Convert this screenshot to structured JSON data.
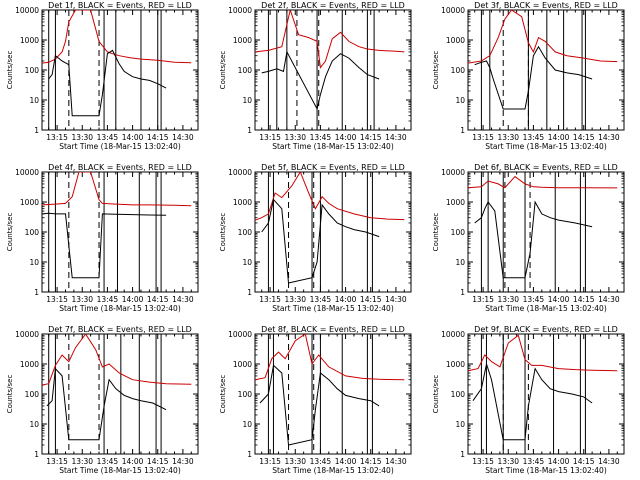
{
  "figure": {
    "colors": {
      "events": "#000000",
      "lld": "#cc0000",
      "axes": "#000000"
    }
  },
  "chart_data": [
    {
      "type": "line",
      "title": "Det 1f, BLACK = Events, RED = LLD",
      "xlabel": "Start Time (18-Mar-15 13:02:40)",
      "ylabel": "Counts/sec",
      "yscale": "log",
      "ylim": [
        1,
        10000
      ],
      "xlim": [
        "13:06",
        "14:39"
      ],
      "xticks": [
        "13:15",
        "13:30",
        "13:45",
        "14:00",
        "14:15",
        "14:30"
      ],
      "yticks": [
        "1",
        "10",
        "100",
        "1000",
        "10000"
      ],
      "solid_vlines": [
        "13:10",
        "13:14",
        "13:43",
        "13:50",
        "14:05",
        "14:15",
        "14:17"
      ],
      "dashed_vlines": [
        "13:22",
        "13:40"
      ],
      "series": [
        {
          "name": "Events",
          "color": "#000000",
          "x": [
            "13:10",
            "13:12",
            "13:14",
            "13:18",
            "13:22",
            "13:24",
            "13:40",
            "13:42",
            "13:45",
            "13:48",
            "13:52",
            "13:55",
            "14:00",
            "14:05",
            "14:10",
            "14:15",
            "14:20"
          ],
          "y": [
            50,
            70,
            300,
            200,
            150,
            3,
            3,
            15,
            350,
            450,
            160,
            90,
            60,
            50,
            45,
            35,
            25
          ]
        },
        {
          "name": "LLD",
          "color": "#cc0000",
          "x": [
            "13:06",
            "13:10",
            "13:14",
            "13:18",
            "13:20",
            "13:22",
            "13:26",
            "13:30",
            "13:35",
            "13:40",
            "13:45",
            "13:48",
            "13:52",
            "13:58",
            "14:05",
            "14:15",
            "14:25",
            "14:35"
          ],
          "y": [
            170,
            180,
            230,
            400,
            900,
            4000,
            10000,
            10000,
            10000,
            900,
            400,
            350,
            300,
            260,
            230,
            210,
            180,
            175
          ]
        }
      ]
    },
    {
      "type": "line",
      "title": "Det 2f, BLACK = Events, RED = LLD",
      "xlabel": "Start Time (18-Mar-15 13:02:40)",
      "ylabel": "Counts/sec",
      "yscale": "log",
      "ylim": [
        1,
        10000
      ],
      "xlim": [
        "13:06",
        "14:39"
      ],
      "xticks": [
        "13:15",
        "13:30",
        "13:45",
        "14:00",
        "14:15",
        "14:30"
      ],
      "yticks": [
        "1",
        "10",
        "100",
        "1000",
        "10000"
      ],
      "solid_vlines": [
        "13:14",
        "13:19",
        "13:25",
        "13:43",
        "13:58",
        "14:13",
        "14:17"
      ],
      "dashed_vlines": [
        "13:31",
        "13:44"
      ],
      "series": [
        {
          "name": "Events",
          "color": "#000000",
          "x": [
            "13:10",
            "13:14",
            "13:19",
            "13:23",
            "13:25",
            "13:43",
            "13:45",
            "13:48",
            "13:52",
            "13:57",
            "14:02",
            "14:08",
            "14:13",
            "14:20"
          ],
          "y": [
            80,
            90,
            110,
            90,
            400,
            5,
            15,
            60,
            200,
            350,
            250,
            120,
            70,
            50
          ]
        },
        {
          "name": "LLD",
          "color": "#cc0000",
          "x": [
            "13:06",
            "13:14",
            "13:22",
            "13:27",
            "13:32",
            "13:38",
            "13:43",
            "13:45",
            "13:48",
            "13:52",
            "13:57",
            "14:02",
            "14:08",
            "14:13",
            "14:20",
            "14:30",
            "14:35"
          ],
          "y": [
            400,
            450,
            600,
            10000,
            1500,
            1200,
            900,
            120,
            200,
            1100,
            1800,
            900,
            600,
            500,
            450,
            420,
            400
          ]
        }
      ]
    },
    {
      "type": "line",
      "title": "Det 3f, BLACK = Events, RED = LLD",
      "xlabel": "Start Time (18-Mar-15 13:02:40)",
      "ylabel": "Counts/sec",
      "yscale": "log",
      "ylim": [
        1,
        10000
      ],
      "xlim": [
        "13:06",
        "14:39"
      ],
      "xticks": [
        "13:15",
        "13:30",
        "13:45",
        "14:00",
        "14:15",
        "14:30"
      ],
      "yticks": [
        "1",
        "10",
        "100",
        "1000",
        "10000"
      ],
      "solid_vlines": [
        "13:14",
        "13:19",
        "13:42",
        "13:53",
        "14:03",
        "14:14",
        "14:16"
      ],
      "dashed_vlines": [
        "13:27",
        "13:42"
      ],
      "series": [
        {
          "name": "Events",
          "color": "#000000",
          "x": [
            "13:10",
            "13:14",
            "13:17",
            "13:19",
            "13:21",
            "13:27",
            "13:40",
            "13:42",
            "13:45",
            "13:48",
            "13:52",
            "13:58",
            "14:05",
            "14:12",
            "14:20"
          ],
          "y": [
            150,
            180,
            200,
            120,
            50,
            5,
            5,
            20,
            300,
            600,
            250,
            100,
            80,
            70,
            50
          ]
        },
        {
          "name": "LLD",
          "color": "#cc0000",
          "x": [
            "13:06",
            "13:14",
            "13:19",
            "13:24",
            "13:28",
            "13:32",
            "13:38",
            "13:42",
            "13:45",
            "13:48",
            "13:52",
            "13:58",
            "14:05",
            "14:15",
            "14:25",
            "14:35"
          ],
          "y": [
            170,
            200,
            300,
            1200,
            5000,
            10000,
            6000,
            800,
            400,
            1200,
            900,
            400,
            300,
            250,
            200,
            190
          ]
        }
      ]
    },
    {
      "type": "line",
      "title": "Det 4f, BLACK = Events, RED = LLD",
      "xlabel": "Start Time (18-Mar-15 13:02:40)",
      "ylabel": "Counts/sec",
      "yscale": "log",
      "ylim": [
        1,
        10000
      ],
      "xlim": [
        "13:06",
        "14:39"
      ],
      "xticks": [
        "13:15",
        "13:30",
        "13:45",
        "14:00",
        "14:15",
        "14:30"
      ],
      "yticks": [
        "1",
        "10",
        "100",
        "1000",
        "10000"
      ],
      "solid_vlines": [
        "13:10",
        "13:14",
        "13:43",
        "13:51",
        "14:04",
        "14:14",
        "14:17"
      ],
      "dashed_vlines": [
        "13:22",
        "13:40"
      ],
      "series": [
        {
          "name": "Events",
          "color": "#000000",
          "x": [
            "13:06",
            "13:10",
            "13:14",
            "13:20",
            "13:24",
            "13:40",
            "13:42",
            "13:50",
            "14:00",
            "14:10",
            "14:20"
          ],
          "y": [
            400,
            420,
            400,
            400,
            3,
            3,
            400,
            390,
            380,
            370,
            360
          ]
        },
        {
          "name": "LLD",
          "color": "#cc0000",
          "x": [
            "13:06",
            "13:14",
            "13:20",
            "13:24",
            "13:28",
            "13:35",
            "13:40",
            "13:42",
            "13:50",
            "14:00",
            "14:10",
            "14:25",
            "14:35"
          ],
          "y": [
            800,
            850,
            900,
            1500,
            10000,
            10000,
            1200,
            900,
            850,
            800,
            800,
            780,
            750
          ]
        }
      ]
    },
    {
      "type": "line",
      "title": "Det 5f, BLACK = Events, RED = LLD",
      "xlabel": "Start Time (18-Mar-15 13:02:40)",
      "ylabel": "Counts/sec",
      "yscale": "log",
      "ylim": [
        1,
        10000
      ],
      "xlim": [
        "13:06",
        "14:39"
      ],
      "xticks": [
        "13:15",
        "13:30",
        "13:45",
        "14:00",
        "14:15",
        "14:30"
      ],
      "yticks": [
        "1",
        "10",
        "100",
        "1000",
        "10000"
      ],
      "solid_vlines": [
        "13:14",
        "13:17",
        "13:40",
        "13:45",
        "13:58",
        "14:13",
        "14:16"
      ],
      "dashed_vlines": [
        "13:26",
        "13:41"
      ],
      "series": [
        {
          "name": "Events",
          "color": "#000000",
          "x": [
            "13:10",
            "13:14",
            "13:17",
            "13:22",
            "13:26",
            "13:40",
            "13:43",
            "13:46",
            "13:50",
            "13:55",
            "14:00",
            "14:05",
            "14:12",
            "14:20"
          ],
          "y": [
            100,
            200,
            1200,
            600,
            2,
            3,
            10,
            800,
            400,
            200,
            150,
            120,
            100,
            70
          ]
        },
        {
          "name": "LLD",
          "color": "#cc0000",
          "x": [
            "13:06",
            "13:10",
            "13:14",
            "13:18",
            "13:22",
            "13:28",
            "13:33",
            "13:38",
            "13:42",
            "13:46",
            "13:50",
            "13:55",
            "14:05",
            "14:15",
            "14:25",
            "14:35"
          ],
          "y": [
            250,
            300,
            400,
            2000,
            1400,
            3500,
            10000,
            2000,
            600,
            1500,
            900,
            600,
            400,
            300,
            270,
            260
          ]
        }
      ]
    },
    {
      "type": "line",
      "title": "Det 6f, BLACK = Events, RED = LLD",
      "xlabel": "Start Time (18-Mar-15 13:02:40)",
      "ylabel": "Counts/sec",
      "yscale": "log",
      "ylim": [
        1,
        10000
      ],
      "xlim": [
        "13:06",
        "14:39"
      ],
      "xticks": [
        "13:15",
        "13:30",
        "13:45",
        "14:00",
        "14:15",
        "14:30"
      ],
      "yticks": [
        "1",
        "10",
        "100",
        "1000",
        "10000"
      ],
      "solid_vlines": [
        "13:14",
        "13:18",
        "13:27",
        "13:40",
        "13:58",
        "14:13",
        "14:16"
      ],
      "dashed_vlines": [
        "13:28",
        "13:43"
      ],
      "series": [
        {
          "name": "Events",
          "color": "#000000",
          "x": [
            "13:10",
            "13:14",
            "13:16",
            "13:18",
            "13:22",
            "13:27",
            "13:40",
            "13:43",
            "13:46",
            "13:50",
            "13:55",
            "14:00",
            "14:10",
            "14:20"
          ],
          "y": [
            200,
            300,
            600,
            1000,
            500,
            3,
            3,
            20,
            1000,
            400,
            300,
            250,
            200,
            150
          ]
        },
        {
          "name": "LLD",
          "color": "#cc0000",
          "x": [
            "13:06",
            "13:14",
            "13:18",
            "13:24",
            "13:28",
            "13:34",
            "13:40",
            "13:45",
            "13:50",
            "14:00",
            "14:15",
            "14:35"
          ],
          "y": [
            3000,
            3200,
            5000,
            4000,
            3000,
            7000,
            4000,
            3200,
            3100,
            3000,
            3000,
            2950
          ]
        }
      ]
    },
    {
      "type": "line",
      "title": "Det 7f, BLACK = Events, RED = LLD",
      "xlabel": "Start Time (18-Mar-15 13:02:40)",
      "ylabel": "Counts/sec",
      "yscale": "log",
      "ylim": [
        1,
        10000
      ],
      "xlim": [
        "13:06",
        "14:39"
      ],
      "xticks": [
        "13:15",
        "13:30",
        "13:45",
        "14:00",
        "14:15",
        "14:30"
      ],
      "yticks": [
        "1",
        "10",
        "100",
        "1000",
        "10000"
      ],
      "solid_vlines": [
        "13:10",
        "13:14",
        "13:43",
        "13:53",
        "14:04",
        "14:14",
        "14:17"
      ],
      "dashed_vlines": [
        "13:22",
        "13:40"
      ],
      "series": [
        {
          "name": "Events",
          "color": "#000000",
          "x": [
            "13:09",
            "13:12",
            "13:14",
            "13:18",
            "13:22",
            "13:40",
            "13:43",
            "13:46",
            "13:50",
            "13:55",
            "14:00",
            "14:05",
            "14:12",
            "14:20"
          ],
          "y": [
            40,
            60,
            700,
            400,
            3,
            3,
            40,
            300,
            150,
            90,
            70,
            60,
            50,
            30
          ]
        },
        {
          "name": "LLD",
          "color": "#cc0000",
          "x": [
            "13:06",
            "13:10",
            "13:14",
            "13:18",
            "13:22",
            "13:26",
            "13:32",
            "13:38",
            "13:42",
            "13:46",
            "13:52",
            "14:00",
            "14:10",
            "14:20",
            "14:35"
          ],
          "y": [
            200,
            220,
            900,
            2000,
            1200,
            3500,
            10000,
            3000,
            800,
            1000,
            500,
            300,
            250,
            220,
            210
          ]
        }
      ]
    },
    {
      "type": "line",
      "title": "Det 8f, BLACK = Events, RED = LLD",
      "xlabel": "Start Time (18-Mar-15 13:02:40)",
      "ylabel": "Counts/sec",
      "yscale": "log",
      "ylim": [
        1,
        10000
      ],
      "xlim": [
        "13:06",
        "14:39"
      ],
      "xticks": [
        "13:15",
        "13:30",
        "13:45",
        "14:00",
        "14:15",
        "14:30"
      ],
      "yticks": [
        "1",
        "10",
        "100",
        "1000",
        "10000"
      ],
      "solid_vlines": [
        "13:14",
        "13:17",
        "13:40",
        "13:45",
        "13:58",
        "14:13",
        "14:16"
      ],
      "dashed_vlines": [
        "13:26",
        "13:41"
      ],
      "series": [
        {
          "name": "Events",
          "color": "#000000",
          "x": [
            "13:09",
            "13:14",
            "13:17",
            "13:22",
            "13:26",
            "13:40",
            "13:42",
            "13:45",
            "13:50",
            "13:55",
            "14:00",
            "14:08",
            "14:15",
            "14:20"
          ],
          "y": [
            50,
            100,
            900,
            500,
            2,
            3,
            30,
            500,
            300,
            150,
            90,
            70,
            60,
            40
          ]
        },
        {
          "name": "LLD",
          "color": "#cc0000",
          "x": [
            "13:06",
            "13:12",
            "13:16",
            "13:20",
            "13:24",
            "13:30",
            "13:36",
            "13:40",
            "13:44",
            "13:50",
            "14:00",
            "14:10",
            "14:20",
            "14:35"
          ],
          "y": [
            300,
            350,
            1500,
            2500,
            1500,
            6000,
            10000,
            1000,
            2000,
            800,
            400,
            330,
            310,
            300
          ]
        }
      ]
    },
    {
      "type": "line",
      "title": "Det 9f, BLACK = Events, RED = LLD",
      "xlabel": "Start Time (18-Mar-15 13:02:40)",
      "ylabel": "Counts/sec",
      "yscale": "log",
      "ylim": [
        1,
        10000
      ],
      "xlim": [
        "13:06",
        "14:39"
      ],
      "xticks": [
        "13:15",
        "13:30",
        "13:45",
        "14:00",
        "14:15",
        "14:30"
      ],
      "yticks": [
        "1",
        "10",
        "100",
        "1000",
        "10000"
      ],
      "solid_vlines": [
        "13:14",
        "13:17",
        "13:27",
        "13:40",
        "13:57",
        "14:13",
        "14:16"
      ],
      "dashed_vlines": [
        "13:27",
        "13:42"
      ],
      "series": [
        {
          "name": "Events",
          "color": "#000000",
          "x": [
            "13:09",
            "13:14",
            "13:17",
            "13:20",
            "13:27",
            "13:40",
            "13:42",
            "13:46",
            "13:50",
            "13:55",
            "14:00",
            "14:08",
            "14:15",
            "14:20"
          ],
          "y": [
            60,
            150,
            1000,
            300,
            3,
            3,
            40,
            700,
            300,
            150,
            120,
            100,
            80,
            50
          ]
        },
        {
          "name": "LLD",
          "color": "#cc0000",
          "x": [
            "13:06",
            "13:12",
            "13:16",
            "13:20",
            "13:25",
            "13:30",
            "13:36",
            "13:40",
            "13:44",
            "13:50",
            "14:00",
            "14:10",
            "14:20",
            "14:35"
          ],
          "y": [
            600,
            700,
            2000,
            1200,
            800,
            5000,
            9000,
            1400,
            900,
            900,
            700,
            650,
            620,
            600
          ]
        }
      ]
    }
  ]
}
